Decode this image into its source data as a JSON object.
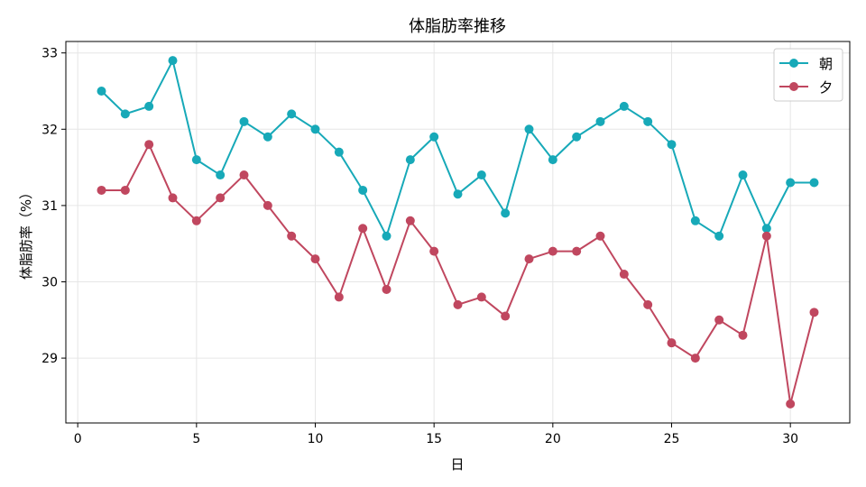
{
  "chart_data": {
    "type": "line",
    "title": "体脂肪率推移",
    "xlabel": "日",
    "ylabel": "体脂肪率（%）",
    "xlim": [
      -0.5,
      32.5
    ],
    "ylim": [
      28.15,
      33.15
    ],
    "xticks": [
      0,
      5,
      10,
      15,
      20,
      25,
      30
    ],
    "yticks": [
      29,
      30,
      31,
      32,
      33
    ],
    "grid": true,
    "legend_position": "top-right",
    "x": [
      1,
      2,
      3,
      4,
      5,
      6,
      7,
      8,
      9,
      10,
      11,
      12,
      13,
      14,
      15,
      16,
      17,
      18,
      19,
      20,
      21,
      22,
      23,
      24,
      25,
      26,
      27,
      28,
      29,
      30,
      31
    ],
    "series": [
      {
        "name": "朝",
        "color": "#17a9b8",
        "values": [
          32.5,
          32.2,
          32.3,
          32.9,
          31.6,
          31.4,
          32.1,
          31.9,
          32.2,
          32.0,
          31.7,
          31.2,
          30.6,
          31.6,
          31.9,
          31.15,
          31.4,
          30.9,
          32.0,
          31.6,
          31.9,
          32.1,
          32.3,
          32.1,
          31.8,
          30.8,
          30.6,
          31.4,
          30.7,
          31.3,
          31.3
        ]
      },
      {
        "name": "夕",
        "color": "#c0475f",
        "values": [
          31.2,
          31.2,
          31.8,
          31.1,
          30.8,
          31.1,
          31.4,
          31.0,
          30.6,
          30.3,
          29.8,
          30.7,
          29.9,
          30.8,
          30.4,
          29.7,
          29.8,
          29.55,
          30.3,
          30.4,
          30.4,
          30.6,
          30.1,
          29.7,
          29.2,
          29.0,
          29.5,
          29.3,
          30.6,
          28.4,
          29.6
        ]
      }
    ]
  }
}
